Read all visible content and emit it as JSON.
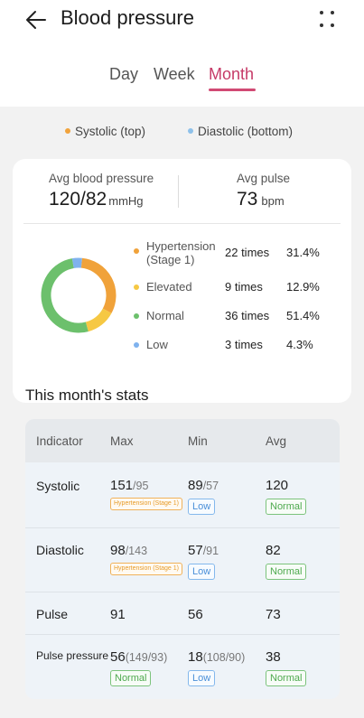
{
  "header": {
    "title": "Blood pressure",
    "back_icon": "arrow-left-icon",
    "more_icon": "more-dots-icon"
  },
  "tabs": [
    {
      "label": "Day",
      "selected": false
    },
    {
      "label": "Week",
      "selected": false
    },
    {
      "label": "Month",
      "selected": true
    }
  ],
  "legend": {
    "systolic": {
      "label": "Systolic (top)",
      "color": "#f1a33c"
    },
    "diastolic": {
      "label": "Diastolic (bottom)",
      "color": "#8ec1ea"
    }
  },
  "summary": {
    "avg_bp_label": "Avg blood pressure",
    "avg_bp_value": "120/82",
    "avg_bp_unit": "mmHg",
    "avg_pulse_label": "Avg pulse",
    "avg_pulse_value": "73",
    "avg_pulse_unit": "bpm"
  },
  "categories": [
    {
      "name": "Hypertension (Stage 1)",
      "times": "22 times",
      "pct": "31.4%",
      "fraction": 0.314,
      "color": "#f0a23a"
    },
    {
      "name": "Elevated",
      "times": "9 times",
      "pct": "12.9%",
      "fraction": 0.129,
      "color": "#f6c843"
    },
    {
      "name": "Normal",
      "times": "36 times",
      "pct": "51.4%",
      "fraction": 0.514,
      "color": "#6cc06c"
    },
    {
      "name": "Low",
      "times": "3 times",
      "pct": "4.3%",
      "fraction": 0.043,
      "color": "#7fb2ee"
    }
  ],
  "stats": {
    "title": "This month's stats",
    "headers": [
      "Indicator",
      "Max",
      "Min",
      "Avg"
    ],
    "rows": [
      {
        "indicator": "Systolic",
        "max": "151",
        "max_sub": "/95",
        "max_badge": "Hypertension (Stage 1)",
        "min": "89",
        "min_sub": "/57",
        "min_badge": "Low",
        "avg": "120",
        "avg_badge": "Normal"
      },
      {
        "indicator": "Diastolic",
        "max": "98",
        "max_sub": "/143",
        "max_badge": "Hypertension (Stage 1)",
        "min": "57",
        "min_sub": "/91",
        "min_badge": "Low",
        "avg": "82",
        "avg_badge": "Normal"
      },
      {
        "indicator": "Pulse",
        "max": "91",
        "min": "56",
        "avg": "73"
      },
      {
        "indicator": "Pulse pressure",
        "max": "56",
        "max_sub": "(149/93)",
        "max_badge": "Normal",
        "min": "18",
        "min_sub": "(108/90)",
        "min_badge": "Low",
        "avg": "38",
        "avg_badge": "Normal"
      }
    ]
  }
}
